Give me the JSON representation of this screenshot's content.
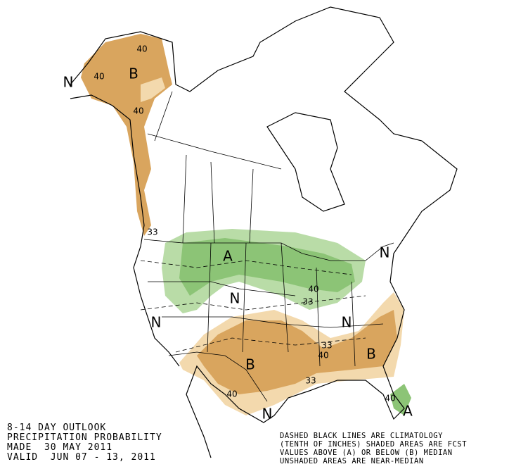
{
  "header": {
    "lines": [
      "8-14 DAY OUTLOOK",
      "PRECIPITATION PROBABILITY",
      "MADE  30 MAY 2011",
      "VALID  JUN 07 - 13, 2011"
    ]
  },
  "notes": {
    "lines": [
      "DASHED BLACK LINES ARE CLIMATOLOGY",
      "(TENTH OF INCHES) SHADED AREAS ARE FCST",
      "VALUES ABOVE (A) OR BELOW (B) MEDIAN",
      "UNSHADED AREAS ARE NEAR-MEDIAN"
    ]
  },
  "labels": [
    "B",
    "40",
    "40",
    "40",
    "N",
    "33",
    "A",
    "N",
    "N",
    "N",
    "N",
    "B",
    "B",
    "40",
    "33",
    "33",
    "40",
    "33",
    "40",
    "N",
    "A",
    "40"
  ]
}
